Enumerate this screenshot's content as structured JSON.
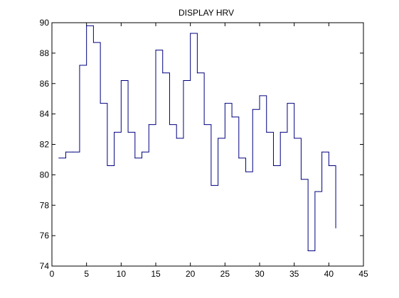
{
  "chart_data": {
    "type": "line",
    "title": "DISPLAY HRV",
    "xlabel": "",
    "ylabel": "",
    "xlim": [
      0,
      45
    ],
    "ylim": [
      74,
      90
    ],
    "grid": false,
    "step": "post",
    "x_ticks": [
      0,
      5,
      10,
      15,
      20,
      25,
      30,
      35,
      40,
      45
    ],
    "y_ticks": [
      74,
      76,
      78,
      80,
      82,
      84,
      86,
      88,
      90
    ],
    "series": [
      {
        "color": "#000080",
        "x": [
          1,
          2,
          3,
          4,
          5,
          6,
          7,
          8,
          9,
          10,
          11,
          12,
          13,
          14,
          15,
          16,
          17,
          18,
          19,
          20,
          21,
          22,
          23,
          24,
          25,
          26,
          27,
          28,
          29,
          30,
          31,
          32,
          33,
          34,
          35,
          36,
          37,
          38,
          39,
          40,
          41
        ],
        "values": [
          81.1,
          81.5,
          81.5,
          87.2,
          89.8,
          88.7,
          84.7,
          80.6,
          82.8,
          86.2,
          82.8,
          81.1,
          81.5,
          83.3,
          88.2,
          86.7,
          83.3,
          82.4,
          86.2,
          89.3,
          86.7,
          83.3,
          79.3,
          82.4,
          84.7,
          83.8,
          81.1,
          80.2,
          84.3,
          85.2,
          82.8,
          80.6,
          82.8,
          84.7,
          82.4,
          79.7,
          75.0,
          78.9,
          81.5,
          80.6,
          76.5
        ]
      }
    ]
  }
}
